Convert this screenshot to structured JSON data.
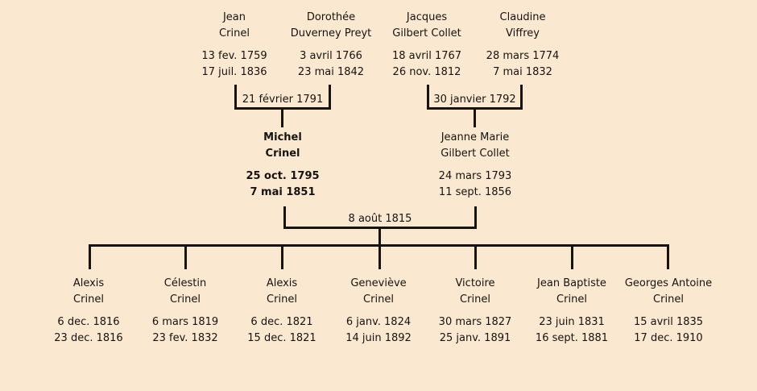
{
  "colors": {
    "background": "#fbe8d1",
    "line": "#161310",
    "text": "#161310"
  },
  "people": {
    "grandparents": [
      {
        "name1": "Jean",
        "name2": "Crinel",
        "birth": "13 fev. 1759",
        "death": "17 juil. 1836"
      },
      {
        "name1": "Dorothée",
        "name2": "Duverney Preyt",
        "birth": "3 avril 1766",
        "death": "23 mai 1842"
      },
      {
        "name1": "Jacques",
        "name2": "Gilbert Collet",
        "birth": "18 avril 1767",
        "death": "26 nov. 1812"
      },
      {
        "name1": "Claudine",
        "name2": "Viffrey",
        "birth": "28 mars 1774",
        "death": "7 mai 1832"
      }
    ],
    "parents": [
      {
        "name1": "Michel",
        "name2": "Crinel",
        "birth": "25 oct. 1795",
        "death": "7 mai 1851"
      },
      {
        "name1": "Jeanne Marie",
        "name2": "Gilbert Collet",
        "birth": "24 mars 1793",
        "death": "11 sept. 1856"
      }
    ],
    "children": [
      {
        "name1": "Alexis",
        "name2": "Crinel",
        "birth": "6 dec. 1816",
        "death": "23 dec. 1816"
      },
      {
        "name1": "Célestin",
        "name2": "Crinel",
        "birth": "6 mars 1819",
        "death": "23 fev. 1832"
      },
      {
        "name1": "Alexis",
        "name2": "Crinel",
        "birth": "6 dec. 1821",
        "death": "15 dec. 1821"
      },
      {
        "name1": "Geneviève",
        "name2": "Crinel",
        "birth": "6 janv. 1824",
        "death": "14 juin 1892"
      },
      {
        "name1": "Victoire",
        "name2": "Crinel",
        "birth": "30 mars 1827",
        "death": "25 janv. 1891"
      },
      {
        "name1": "Jean Baptiste",
        "name2": "Crinel",
        "birth": "23 juin 1831",
        "death": "16 sept. 1881"
      },
      {
        "name1": "Georges Antoine",
        "name2": "Crinel",
        "birth": "15 avril 1835",
        "death": "17 dec. 1910"
      }
    ]
  },
  "marriages": [
    {
      "date": "21 février 1791"
    },
    {
      "date": "30 janvier 1792"
    },
    {
      "date": "8 août 1815"
    }
  ]
}
